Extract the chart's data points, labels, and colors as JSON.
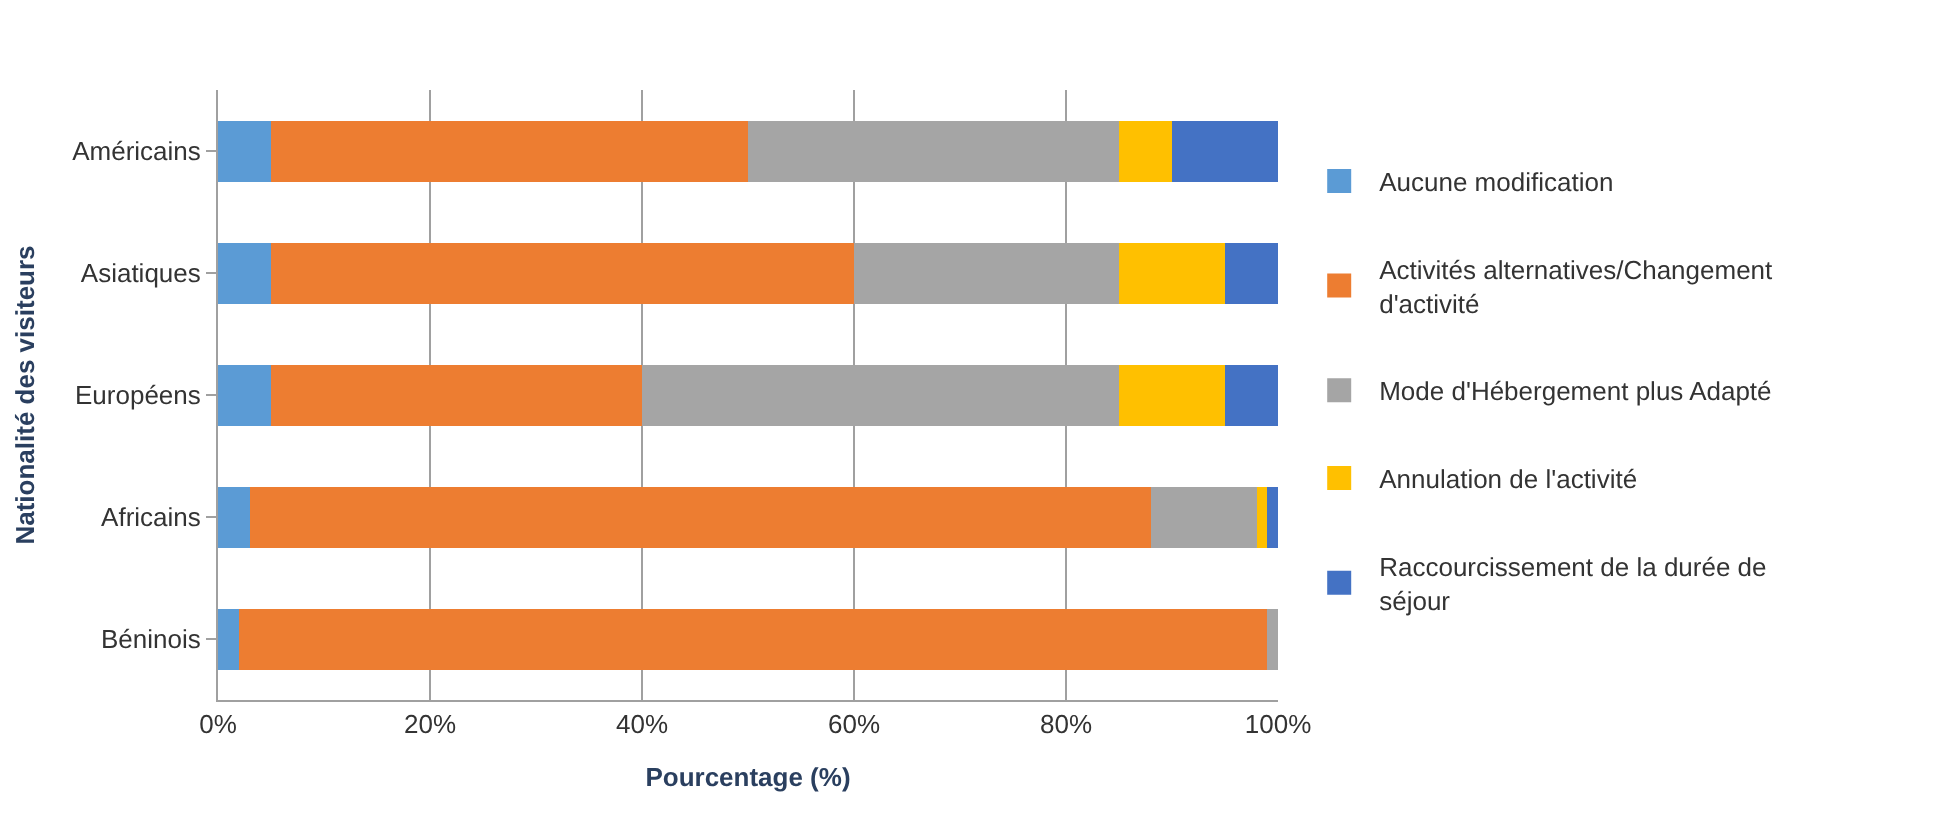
{
  "chart_data": {
    "type": "bar",
    "orientation": "horizontal",
    "stacked": true,
    "xlabel": "Pourcentage (%)",
    "ylabel": "Nationalité des visiteurs",
    "categories": [
      "Américains",
      "Asiatiques",
      "Européens",
      "Africains",
      "Béninois"
    ],
    "series": [
      {
        "name": "Aucune modification",
        "color": "#5b9bd5",
        "values": [
          5,
          5,
          5,
          3,
          2
        ]
      },
      {
        "name": "Activités alternatives/Changement d'activité",
        "color": "#ed7d31",
        "values": [
          45,
          55,
          35,
          85,
          97
        ]
      },
      {
        "name": "Mode d'Hébergement plus Adapté",
        "color": "#a5a5a5",
        "values": [
          35,
          25,
          45,
          10,
          1
        ]
      },
      {
        "name": "Annulation de l'activité",
        "color": "#ffc000",
        "values": [
          5,
          10,
          10,
          1,
          0
        ]
      },
      {
        "name": "Raccourcissement de la durée de séjour",
        "color": "#4472c4",
        "values": [
          10,
          5,
          5,
          1,
          0
        ]
      }
    ],
    "xlim": [
      0,
      100
    ],
    "xticks": [
      {
        "value": 0,
        "label": "0%"
      },
      {
        "value": 20,
        "label": "20%"
      },
      {
        "value": 40,
        "label": "40%"
      },
      {
        "value": 60,
        "label": "60%"
      },
      {
        "value": 80,
        "label": "80%"
      },
      {
        "value": 100,
        "label": "100%"
      }
    ],
    "grid": "x",
    "legend": "right"
  }
}
